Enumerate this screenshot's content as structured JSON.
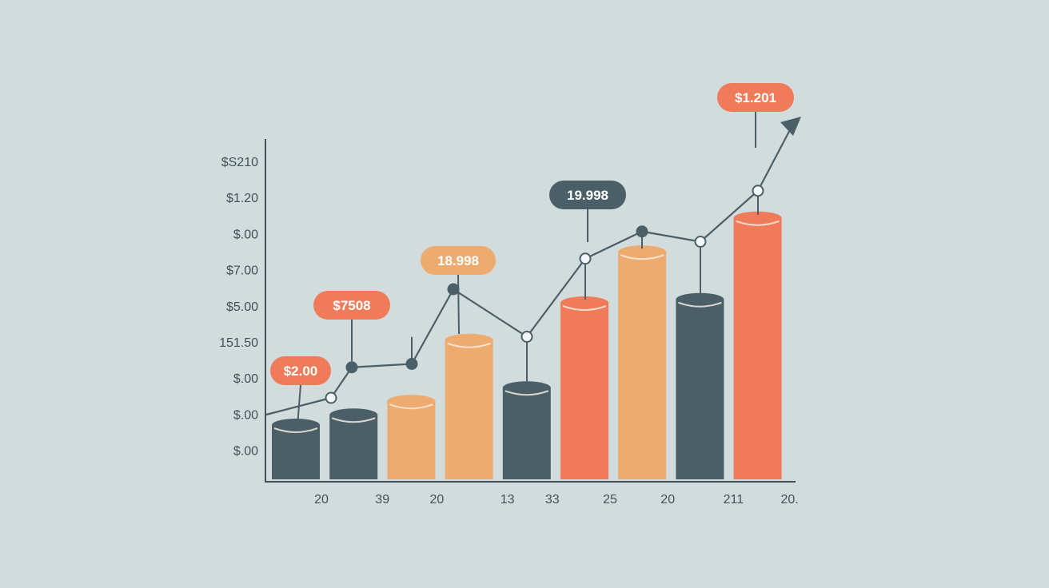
{
  "colors": {
    "background": "#d2dcdd",
    "slate": "#4a5f67",
    "salmon": "#ef7b5a",
    "apricot": "#edab70",
    "axis": "#3e525a",
    "line": "#4a5f67"
  },
  "chart_data": {
    "type": "bar",
    "title": "",
    "xlabel": "",
    "ylabel": "",
    "y_tick_labels": [
      "$S210",
      "$1.20",
      "$.00",
      "$7.00",
      "$5.00",
      "151.50",
      "$.00",
      "$.00",
      "$.00"
    ],
    "categories": [
      "20",
      "39",
      "20",
      "13",
      "33",
      "25",
      "20",
      "211",
      "20."
    ],
    "bar_heights_relative": [
      1.6,
      1.9,
      2.3,
      4.1,
      2.7,
      5.2,
      6.7,
      5.3,
      7.7
    ],
    "bar_colors": [
      "slate",
      "slate",
      "apricot",
      "apricot",
      "slate",
      "salmon",
      "apricot",
      "slate",
      "salmon"
    ],
    "trend_line": {
      "values": [
        1.9,
        2.4,
        3.3,
        3.4,
        5.6,
        4.2,
        6.5,
        7.3,
        7.0,
        8.5
      ],
      "arrow": true
    },
    "callouts": [
      {
        "text": "$2.00",
        "color": "salmon",
        "anchor_bar": 0
      },
      {
        "text": "$7508",
        "color": "salmon",
        "anchor_bar": 1
      },
      {
        "text": "18.998",
        "color": "apricot",
        "anchor_bar": 3
      },
      {
        "text": "19.998",
        "color": "slate",
        "anchor_bar": 5
      },
      {
        "text": "$1.201",
        "color": "salmon",
        "anchor_bar": 8
      }
    ],
    "grid": false,
    "legend": "none"
  }
}
